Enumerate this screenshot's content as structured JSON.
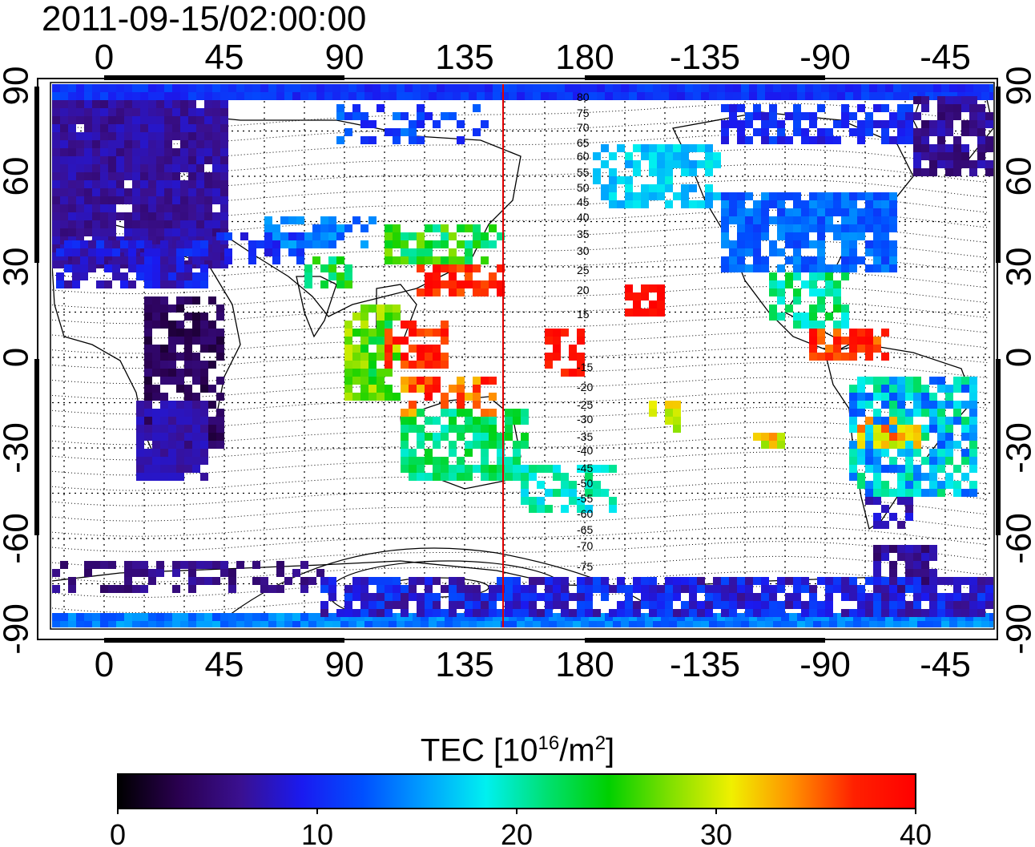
{
  "title": "2011-09-15/02:00:00",
  "map": {
    "top_lon_ticks": [
      "0",
      "45",
      "90",
      "135",
      "180",
      "-135",
      "-90",
      "-45"
    ],
    "bottom_lon_ticks": [
      "0",
      "45",
      "90",
      "135",
      "180",
      "-135",
      "-90",
      "-45"
    ],
    "left_lat_ticks": [
      "90",
      "60",
      "30",
      "0",
      "-30",
      "-60",
      "-90"
    ],
    "right_lat_ticks": [
      "90",
      "60",
      "30",
      "0",
      "-30",
      "-60",
      "-90"
    ],
    "magnetic_latitude_labels": [
      "80",
      "75",
      "70",
      "65",
      "60",
      "55",
      "50",
      "45",
      "40",
      "35",
      "30",
      "25",
      "20",
      "15",
      "-15",
      "-20",
      "-25",
      "-30",
      "-35",
      "-40",
      "-45",
      "-50",
      "-55",
      "-60",
      "-65",
      "-70",
      "-75"
    ],
    "marker_line_color": "#e00000"
  },
  "colorbar": {
    "label_prefix": "TEC  [10",
    "label_exp1": "16",
    "label_mid": "/m",
    "label_exp2": "2",
    "label_suffix": "]",
    "ticks": [
      "0",
      "10",
      "20",
      "30",
      "40"
    ],
    "colors": [
      "#000000",
      "#2a0050",
      "#3a1090",
      "#1a1af0",
      "#0050ff",
      "#00a0ff",
      "#00f0f0",
      "#00e070",
      "#00d000",
      "#80e000",
      "#f0f000",
      "#ff9000",
      "#ff2000",
      "#ff0000"
    ]
  },
  "chart_data": {
    "type": "heatmap",
    "title": "2011-09-15/02:00:00",
    "xlabel": "",
    "ylabel": "",
    "colorbar_label": "TEC [10^16/m^2]",
    "colorbar_range": [
      0,
      40
    ],
    "colorbar_ticks": [
      0,
      10,
      20,
      30,
      40
    ],
    "x_ticks": [
      0,
      45,
      90,
      135,
      180,
      -135,
      -90,
      -45
    ],
    "y_ticks": [
      90,
      60,
      30,
      0,
      -30,
      -60,
      -90
    ],
    "ylim": [
      -90,
      90
    ],
    "grid": true,
    "marker_longitude": 150
  }
}
